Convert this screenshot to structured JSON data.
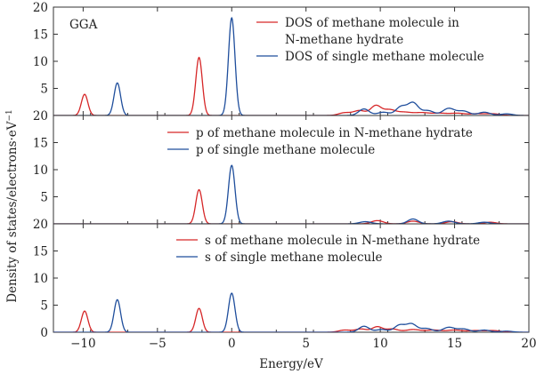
{
  "figure": {
    "ylabel": "Density of states/electrons·eV",
    "ylabel_superscript": "−1",
    "xlabel": "Energy/eV",
    "colors": {
      "red": "#d62728",
      "blue": "#1f4e9c",
      "axis": "#333333"
    }
  },
  "chart_data": [
    {
      "type": "line",
      "panel": "top",
      "annotation": "GGA",
      "xlim": [
        -12,
        20
      ],
      "ylim": [
        0,
        20
      ],
      "x_ticks": [
        -10,
        -5,
        0,
        5,
        10,
        15,
        20
      ],
      "y_ticks": [
        0,
        5,
        10,
        15,
        20
      ],
      "y_tick_labels": [
        "20",
        "5",
        "10",
        "15",
        "20"
      ],
      "series": [
        {
          "name": "DOS of methane molecule in N-methane hydrate",
          "legend_lines": [
            "DOS of methane molecule in",
            "N-methane hydrate"
          ],
          "color": "red",
          "peaks": [
            {
              "x": -9.9,
              "h": 3.9,
              "w": 0.22
            },
            {
              "x": -2.2,
              "h": 10.7,
              "w": 0.22
            },
            {
              "x": 7.6,
              "h": 0.5,
              "w": 0.4
            },
            {
              "x": 8.6,
              "h": 0.9,
              "w": 0.4
            },
            {
              "x": 9.7,
              "h": 1.8,
              "w": 0.35
            },
            {
              "x": 10.6,
              "h": 1.0,
              "w": 0.4
            },
            {
              "x": 11.6,
              "h": 0.6,
              "w": 0.5
            },
            {
              "x": 12.8,
              "h": 0.5,
              "w": 0.5
            },
            {
              "x": 14.0,
              "h": 0.4,
              "w": 0.5
            },
            {
              "x": 15.2,
              "h": 0.4,
              "w": 0.5
            },
            {
              "x": 16.5,
              "h": 0.3,
              "w": 0.5
            },
            {
              "x": 17.6,
              "h": 0.3,
              "w": 0.5
            }
          ]
        },
        {
          "name": "DOS of single methane molecule",
          "legend_lines": [
            "DOS of single methane molecule"
          ],
          "color": "blue",
          "peaks": [
            {
              "x": -7.7,
              "h": 6.0,
              "w": 0.22
            },
            {
              "x": 0.0,
              "h": 18.0,
              "w": 0.22
            },
            {
              "x": 8.9,
              "h": 1.2,
              "w": 0.35
            },
            {
              "x": 10.2,
              "h": 0.6,
              "w": 0.4
            },
            {
              "x": 11.4,
              "h": 1.6,
              "w": 0.35
            },
            {
              "x": 12.2,
              "h": 2.3,
              "w": 0.35
            },
            {
              "x": 13.2,
              "h": 0.9,
              "w": 0.4
            },
            {
              "x": 14.6,
              "h": 1.3,
              "w": 0.4
            },
            {
              "x": 15.6,
              "h": 0.8,
              "w": 0.4
            },
            {
              "x": 17.0,
              "h": 0.6,
              "w": 0.4
            },
            {
              "x": 18.5,
              "h": 0.3,
              "w": 0.4
            }
          ]
        }
      ]
    },
    {
      "type": "line",
      "panel": "middle",
      "xlim": [
        -12,
        20
      ],
      "ylim": [
        0,
        20
      ],
      "x_ticks": [
        -10,
        -5,
        0,
        5,
        10,
        15,
        20
      ],
      "y_ticks": [
        0,
        5,
        10,
        15,
        20
      ],
      "y_tick_labels": [
        "20",
        "5",
        "10",
        "15",
        ""
      ],
      "series": [
        {
          "name": "p of methane molecule in N-methane hydrate",
          "legend_lines": [
            "p of methane molecule in N-methane hydrate"
          ],
          "color": "red",
          "peaks": [
            {
              "x": -2.2,
              "h": 6.3,
              "w": 0.22
            },
            {
              "x": 9.8,
              "h": 0.6,
              "w": 0.4
            },
            {
              "x": 12.2,
              "h": 0.5,
              "w": 0.4
            },
            {
              "x": 14.8,
              "h": 0.4,
              "w": 0.4
            },
            {
              "x": 17.4,
              "h": 0.3,
              "w": 0.4
            }
          ]
        },
        {
          "name": "p of single methane molecule",
          "legend_lines": [
            "p of single methane molecule"
          ],
          "color": "blue",
          "peaks": [
            {
              "x": 0.0,
              "h": 10.8,
              "w": 0.22
            },
            {
              "x": 9.0,
              "h": 0.4,
              "w": 0.4
            },
            {
              "x": 12.2,
              "h": 0.9,
              "w": 0.35
            },
            {
              "x": 14.6,
              "h": 0.5,
              "w": 0.4
            },
            {
              "x": 17.0,
              "h": 0.3,
              "w": 0.4
            }
          ]
        }
      ]
    },
    {
      "type": "line",
      "panel": "bottom",
      "xlim": [
        -12,
        20
      ],
      "ylim": [
        0,
        20
      ],
      "x_ticks": [
        -10,
        -5,
        0,
        5,
        10,
        15,
        20
      ],
      "x_tick_labels": [
        "−10",
        "−5",
        "0",
        "5",
        "10",
        "15",
        "20"
      ],
      "y_ticks": [
        0,
        5,
        10,
        15,
        20
      ],
      "y_tick_labels": [
        "0",
        "5",
        "10",
        "15",
        ""
      ],
      "series": [
        {
          "name": "s of methane molecule in N-methane hydrate",
          "legend_lines": [
            "s of methane molecule in N-methane hydrate"
          ],
          "color": "red",
          "peaks": [
            {
              "x": -9.9,
              "h": 3.9,
              "w": 0.22
            },
            {
              "x": -2.2,
              "h": 4.4,
              "w": 0.22
            },
            {
              "x": 7.6,
              "h": 0.4,
              "w": 0.4
            },
            {
              "x": 8.7,
              "h": 0.6,
              "w": 0.4
            },
            {
              "x": 9.8,
              "h": 1.0,
              "w": 0.35
            },
            {
              "x": 10.8,
              "h": 0.6,
              "w": 0.4
            },
            {
              "x": 12.2,
              "h": 0.5,
              "w": 0.5
            },
            {
              "x": 13.6,
              "h": 0.4,
              "w": 0.5
            },
            {
              "x": 15.0,
              "h": 0.4,
              "w": 0.5
            },
            {
              "x": 16.4,
              "h": 0.3,
              "w": 0.5
            },
            {
              "x": 17.6,
              "h": 0.3,
              "w": 0.5
            }
          ]
        },
        {
          "name": "s of single methane molecule",
          "legend_lines": [
            "s of single methane molecule"
          ],
          "color": "blue",
          "peaks": [
            {
              "x": -7.7,
              "h": 6.0,
              "w": 0.22
            },
            {
              "x": 0.0,
              "h": 7.2,
              "w": 0.22
            },
            {
              "x": 8.9,
              "h": 1.1,
              "w": 0.35
            },
            {
              "x": 10.1,
              "h": 0.5,
              "w": 0.4
            },
            {
              "x": 11.3,
              "h": 1.3,
              "w": 0.35
            },
            {
              "x": 12.1,
              "h": 1.5,
              "w": 0.35
            },
            {
              "x": 13.1,
              "h": 0.7,
              "w": 0.4
            },
            {
              "x": 14.6,
              "h": 0.9,
              "w": 0.4
            },
            {
              "x": 15.6,
              "h": 0.6,
              "w": 0.4
            },
            {
              "x": 17.0,
              "h": 0.4,
              "w": 0.4
            },
            {
              "x": 18.5,
              "h": 0.2,
              "w": 0.4
            }
          ]
        }
      ]
    }
  ]
}
